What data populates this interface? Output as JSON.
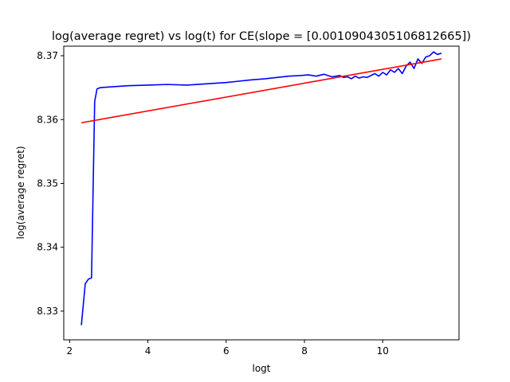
{
  "chart_data": {
    "type": "line",
    "title": "log(average regret) vs log(t) for CE(slope = [0.0010904305106812665])",
    "xlabel": "logt",
    "ylabel": "log(average regret)",
    "xlim": [
      1.85,
      11.95
    ],
    "ylim": [
      8.3255,
      8.3715
    ],
    "xticks": [
      2,
      4,
      6,
      8,
      10
    ],
    "xtick_labels": [
      "2",
      "4",
      "6",
      "8",
      "10"
    ],
    "yticks": [
      8.33,
      8.34,
      8.35,
      8.36,
      8.37
    ],
    "ytick_labels": [
      "8.33",
      "8.34",
      "8.35",
      "8.36",
      "8.37"
    ],
    "grid": false,
    "series": [
      {
        "color": "#0000ff",
        "x": [
          2.3,
          2.4,
          2.48,
          2.56,
          2.64,
          2.7,
          2.78,
          3.0,
          3.5,
          4.0,
          4.5,
          5.0,
          5.5,
          6.0,
          6.3,
          6.6,
          7.0,
          7.3,
          7.6,
          7.9,
          8.1,
          8.3,
          8.5,
          8.7,
          8.9,
          9.0,
          9.1,
          9.2,
          9.3,
          9.4,
          9.5,
          9.6,
          9.7,
          9.8,
          9.9,
          10.0,
          10.1,
          10.2,
          10.3,
          10.4,
          10.5,
          10.6,
          10.7,
          10.8,
          10.9,
          11.0,
          11.1,
          11.2,
          11.3,
          11.4,
          11.5
        ],
        "y": [
          8.3278,
          8.3343,
          8.335,
          8.3352,
          8.3628,
          8.3648,
          8.365,
          8.3651,
          8.3653,
          8.3654,
          8.3655,
          8.3654,
          8.3656,
          8.3658,
          8.366,
          8.3662,
          8.3664,
          8.3666,
          8.3668,
          8.3669,
          8.367,
          8.3668,
          8.3671,
          8.3667,
          8.3669,
          8.3666,
          8.3667,
          8.3664,
          8.3668,
          8.3665,
          8.3667,
          8.3666,
          8.3669,
          8.3672,
          8.3668,
          8.3674,
          8.367,
          8.3678,
          8.3674,
          8.368,
          8.3672,
          8.3684,
          8.369,
          8.368,
          8.3695,
          8.3688,
          8.3698,
          8.37,
          8.3706,
          8.3702,
          8.3704
        ]
      },
      {
        "color": "#ff0000",
        "x": [
          2.3,
          11.5
        ],
        "y": [
          8.3595,
          8.3695
        ]
      }
    ]
  }
}
